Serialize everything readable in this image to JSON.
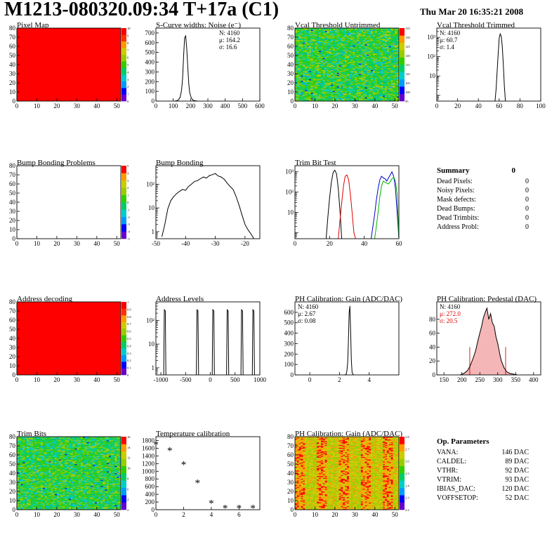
{
  "header": {
    "title": "M1213-080320.09:34 T+17a (C1)",
    "timestamp": "Thu Mar 20 16:35:21 2008"
  },
  "colors": {
    "hist_line": "#000000",
    "red": "#e00000",
    "green": "#00b000",
    "blue": "#0000cc",
    "fill": "#f4b6b6"
  },
  "chart_data": [
    {
      "id": "pixel-map",
      "type": "heatmap",
      "title": "Pixel Map",
      "xlim": [
        0,
        52
      ],
      "ylim": [
        0,
        80
      ],
      "xticks": [
        "0",
        "10",
        "20",
        "30",
        "40",
        "50"
      ],
      "yticks": [
        "0",
        "10",
        "20",
        "30",
        "40",
        "50",
        "60",
        "70",
        "80"
      ],
      "fill": "uniform-red",
      "palette_ticks": [
        "10",
        "9",
        "8",
        "7",
        "6",
        "5",
        "4",
        "3",
        "2",
        "1",
        "0"
      ]
    },
    {
      "id": "scurve-noise",
      "type": "line",
      "title": "S-Curve widths: Noise (e⁻)",
      "xlim": [
        0,
        600
      ],
      "ylim": [
        0,
        750
      ],
      "xticks": [
        "0",
        "100",
        "200",
        "300",
        "400",
        "500",
        "600"
      ],
      "yticks": [
        "0",
        "100",
        "200",
        "300",
        "400",
        "500",
        "600",
        "700"
      ],
      "stats": [
        "N: 4160",
        "μ: 164.2",
        "σ: 16.6"
      ],
      "series": [
        {
          "x": [
            110,
            120,
            130,
            140,
            148,
            154,
            160,
            166,
            172,
            178,
            184,
            190,
            196,
            204,
            212,
            222,
            240
          ],
          "y": [
            0,
            4,
            12,
            40,
            110,
            230,
            470,
            650,
            670,
            540,
            350,
            170,
            80,
            35,
            12,
            4,
            0
          ]
        }
      ]
    },
    {
      "id": "vcal-untrimmed",
      "type": "heatmap",
      "title": "Vcal Threshold Untrimmed",
      "xlim": [
        0,
        52
      ],
      "ylim": [
        0,
        80
      ],
      "xticks": [
        "0",
        "10",
        "20",
        "30",
        "40",
        "50"
      ],
      "yticks": [
        "0",
        "10",
        "20",
        "30",
        "40",
        "50",
        "60",
        "70",
        "80"
      ],
      "fill": "noise-cyan",
      "palette_ticks": [
        "135",
        "130",
        "125",
        "120",
        "115",
        "110",
        "105",
        "100",
        "95"
      ]
    },
    {
      "id": "vcal-trimmed",
      "type": "line",
      "title": "Vcal Threshold Trimmed",
      "log_y": true,
      "xlim": [
        0,
        100
      ],
      "ylim": [
        0.5,
        3000
      ],
      "xticks": [
        "0",
        "20",
        "40",
        "60",
        "80",
        "100"
      ],
      "ylog_labels": [
        {
          "v": 10,
          "t": "10"
        },
        {
          "v": 100,
          "t": "10²"
        },
        {
          "v": 1000,
          "t": "10³"
        }
      ],
      "stats": [
        "N: 4160",
        "μ: 60.7",
        "σ:  1.4"
      ],
      "series": [
        {
          "x": [
            56,
            57,
            58,
            59,
            60,
            61,
            62,
            63,
            64,
            65,
            66
          ],
          "y": [
            0.5,
            2,
            15,
            120,
            900,
            1500,
            1100,
            350,
            40,
            3,
            0.5
          ]
        }
      ]
    },
    {
      "id": "bump-bonding-problems",
      "type": "heatmap",
      "title": "Bump Bonding Problems",
      "xlim": [
        0,
        52
      ],
      "ylim": [
        0,
        80
      ],
      "xticks": [
        "0",
        "10",
        "20",
        "30",
        "40",
        "50"
      ],
      "yticks": [
        "0",
        "10",
        "20",
        "30",
        "40",
        "50",
        "60",
        "70",
        "80"
      ],
      "fill": "empty",
      "palette_ticks": [
        "5",
        "4",
        "3",
        "2",
        "1",
        "0",
        "-1",
        "-2",
        "-3",
        "-4",
        "-5"
      ]
    },
    {
      "id": "bump-bonding",
      "type": "line",
      "title": "Bump Bonding",
      "log_y": true,
      "xlim": [
        -50,
        -15
      ],
      "ylim": [
        0.5,
        600
      ],
      "xticks": [
        "-50",
        "-40",
        "-30",
        "-20"
      ],
      "ylog_labels": [
        {
          "v": 1,
          "t": "1"
        },
        {
          "v": 10,
          "t": "10"
        },
        {
          "v": 100,
          "t": "10²"
        }
      ],
      "series": [
        {
          "x": [
            -48,
            -47,
            -46,
            -45,
            -44,
            -43,
            -42,
            -41,
            -40,
            -39,
            -38,
            -37,
            -36,
            -35,
            -34,
            -33,
            -32,
            -31,
            -30,
            -29,
            -28,
            -27,
            -26,
            -25,
            -24,
            -23,
            -22,
            -21,
            -20,
            -19,
            -18,
            -17
          ],
          "y": [
            0.6,
            2,
            9,
            20,
            30,
            40,
            50,
            60,
            55,
            80,
            100,
            130,
            140,
            170,
            200,
            180,
            230,
            250,
            280,
            220,
            200,
            160,
            110,
            80,
            60,
            30,
            13,
            5,
            2,
            1.2,
            0.8,
            0.5
          ]
        }
      ]
    },
    {
      "id": "trim-bit-test",
      "type": "line",
      "title": "Trim Bit Test",
      "log_y": true,
      "xlim": [
        0,
        60
      ],
      "ylim": [
        0.5,
        2000
      ],
      "xticks": [
        "0",
        "20",
        "40",
        "60"
      ],
      "ylog_labels": [
        {
          "v": 10,
          "t": "10"
        },
        {
          "v": 100,
          "t": "10²"
        },
        {
          "v": 1000,
          "t": "10³"
        }
      ],
      "series": [
        {
          "name": "",
          "color": "#000000",
          "x": [
            18,
            19,
            20,
            21,
            22,
            23,
            24,
            25,
            26,
            27
          ],
          "y": [
            0.5,
            6,
            50,
            300,
            900,
            1200,
            800,
            150,
            12,
            0.5
          ]
        },
        {
          "name": "",
          "color": "#e00000",
          "x": [
            25,
            26,
            27,
            28,
            29,
            30,
            31,
            32,
            33,
            34,
            35
          ],
          "y": [
            0.5,
            4,
            30,
            200,
            600,
            700,
            400,
            80,
            10,
            1,
            0.5
          ]
        },
        {
          "name": "",
          "color": "#0000cc",
          "x": [
            44,
            45,
            46,
            47,
            48,
            49,
            50,
            51,
            52,
            53,
            54,
            55,
            56,
            57,
            58,
            59,
            60
          ],
          "y": [
            0.5,
            2,
            8,
            40,
            150,
            400,
            600,
            500,
            450,
            350,
            500,
            700,
            1000,
            600,
            150,
            10,
            0.5
          ]
        },
        {
          "name": "",
          "color": "#00b000",
          "x": [
            46,
            47,
            48,
            49,
            50,
            51,
            52,
            53,
            54,
            55,
            56,
            57,
            58,
            59,
            60
          ],
          "y": [
            0.5,
            2,
            10,
            60,
            200,
            350,
            300,
            280,
            250,
            330,
            450,
            550,
            350,
            80,
            0.5
          ]
        }
      ]
    },
    {
      "id": "summary",
      "type": "table",
      "title": "Summary",
      "total": "0",
      "rows": [
        {
          "label": "Dead Pixels:",
          "value": "0"
        },
        {
          "label": "Noisy Pixels:",
          "value": "0"
        },
        {
          "label": "Mask defects:",
          "value": "0"
        },
        {
          "label": "Dead Bumps:",
          "value": "0"
        },
        {
          "label": "Dead Trimbits:",
          "value": "0"
        },
        {
          "label": "Address Probl:",
          "value": "0"
        }
      ]
    },
    {
      "id": "address-decoding",
      "type": "heatmap",
      "title": "Address decoding",
      "xlim": [
        0,
        52
      ],
      "ylim": [
        0,
        80
      ],
      "xticks": [
        "0",
        "10",
        "20",
        "30",
        "40",
        "50"
      ],
      "yticks": [
        "0",
        "10",
        "20",
        "30",
        "40",
        "50",
        "60",
        "70",
        "80"
      ],
      "fill": "uniform-red",
      "palette_ticks": [
        "1",
        "0.9",
        "0.8",
        "0.7",
        "0.6",
        "0.5",
        "0.4",
        "0.3",
        "0.2",
        "0.1",
        "0"
      ]
    },
    {
      "id": "address-levels",
      "type": "line",
      "title": "Address Levels",
      "log_y": true,
      "xlim": [
        -1100,
        1000
      ],
      "ylim": [
        0.5,
        600
      ],
      "xticks": [
        "-1000",
        "-500",
        "0",
        "500",
        "1000"
      ],
      "ylog_labels": [
        {
          "v": 1,
          "t": "1"
        },
        {
          "v": 10,
          "t": "10"
        },
        {
          "v": 100,
          "t": "10²"
        }
      ],
      "peaks": [
        -920,
        -260,
        60,
        350,
        640,
        870
      ],
      "peak_height": 280
    },
    {
      "id": "ph-gain",
      "type": "line",
      "title": "PH Calibration: Gain (ADC/DAC)",
      "xlim": [
        -1,
        6
      ],
      "ylim": [
        0,
        700
      ],
      "xticks": [
        "0",
        "2",
        "4"
      ],
      "yticks": [
        "0",
        "100",
        "200",
        "300",
        "400",
        "500",
        "600"
      ],
      "stats": [
        "N: 4160",
        "μ: 2.67",
        "σ: 0.08"
      ],
      "series": [
        {
          "x": [
            2.35,
            2.45,
            2.5,
            2.55,
            2.6,
            2.65,
            2.7,
            2.75,
            2.8,
            2.85,
            2.95
          ],
          "y": [
            0,
            5,
            40,
            120,
            320,
            600,
            660,
            420,
            140,
            20,
            0
          ]
        }
      ]
    },
    {
      "id": "ph-pedestal",
      "type": "line",
      "title": "PH Calibration: Pedestal (DAC)",
      "xlim": [
        130,
        420
      ],
      "ylim": [
        0,
        105
      ],
      "xticks": [
        "150",
        "200",
        "250",
        "300",
        "350",
        "400"
      ],
      "yticks": [
        "0",
        "20",
        "40",
        "60",
        "80"
      ],
      "stats": [
        "N: 4160",
        "μ: 272.0",
        "σ: 20.5"
      ],
      "fit_range": [
        222,
        322
      ],
      "series": [
        {
          "x": [
            195,
            205,
            215,
            222,
            230,
            238,
            245,
            250,
            255,
            260,
            265,
            270,
            275,
            280,
            285,
            290,
            295,
            300,
            305,
            310,
            318,
            326,
            335,
            345,
            355
          ],
          "y": [
            0,
            2,
            6,
            12,
            22,
            34,
            50,
            60,
            70,
            82,
            90,
            96,
            80,
            88,
            75,
            70,
            55,
            45,
            32,
            20,
            10,
            4,
            2,
            1,
            0
          ]
        }
      ]
    },
    {
      "id": "trim-bits",
      "type": "heatmap",
      "title": "Trim Bits",
      "xlim": [
        0,
        52
      ],
      "ylim": [
        0,
        80
      ],
      "xticks": [
        "0",
        "10",
        "20",
        "30",
        "40",
        "50"
      ],
      "yticks": [
        "0",
        "10",
        "20",
        "30",
        "40",
        "50",
        "60",
        "70",
        "80"
      ],
      "fill": "noise-green",
      "palette_ticks": [
        "16",
        "14",
        "12",
        "10",
        "8",
        "6",
        "4",
        "2"
      ]
    },
    {
      "id": "temp-calibration",
      "type": "scatter",
      "title": "Temperature calibration",
      "xlim": [
        0,
        7.5
      ],
      "ylim": [
        0,
        1900
      ],
      "xticks": [
        "0",
        "2",
        "4",
        "6"
      ],
      "yticks": [
        "0",
        "200",
        "400",
        "600",
        "800",
        "1000",
        "1200",
        "1400",
        "1600",
        "1800"
      ],
      "x": [
        0,
        1,
        2,
        3,
        4,
        5,
        6,
        7
      ],
      "y": [
        1720,
        1560,
        1200,
        720,
        190,
        60,
        60,
        60
      ]
    },
    {
      "id": "ph-gain-map",
      "type": "heatmap",
      "title": "PH Calibration: Gain (ADC/DAC)",
      "xlim": [
        0,
        52
      ],
      "ylim": [
        0,
        80
      ],
      "xticks": [
        "0",
        "10",
        "20",
        "30",
        "40",
        "50"
      ],
      "yticks": [
        "0",
        "10",
        "20",
        "30",
        "40",
        "50",
        "60",
        "70",
        "80"
      ],
      "fill": "noise-orange",
      "palette_ticks": [
        "2.8",
        "2.7",
        "2.6",
        "2.5",
        "2.4",
        "2.3",
        "2.2"
      ]
    },
    {
      "id": "op-parameters",
      "type": "table",
      "title": "Op. Parameters",
      "rows": [
        {
          "label": "VANA:",
          "value": "146 DAC"
        },
        {
          "label": "CALDEL:",
          "value": "89 DAC"
        },
        {
          "label": "VTHR:",
          "value": "92 DAC"
        },
        {
          "label": "VTRIM:",
          "value": "93 DAC"
        },
        {
          "label": "IBIAS_DAC:",
          "value": "120 DAC"
        },
        {
          "label": "VOFFSETOP:",
          "value": "52 DAC"
        }
      ]
    }
  ]
}
